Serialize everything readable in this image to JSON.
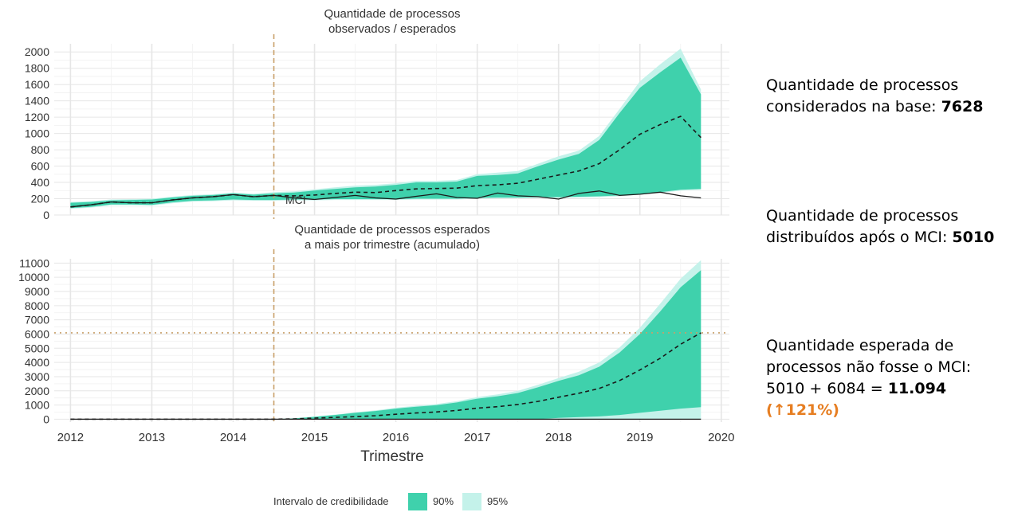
{
  "chart_data": [
    {
      "type": "area",
      "title_line1": "Quantidade de processos",
      "title_line2": "observados / esperados",
      "xlabel": "",
      "ylabel": "",
      "xlim": [
        2011.8,
        2020.1
      ],
      "ylim": [
        0,
        2100
      ],
      "yticks": [
        0,
        200,
        400,
        600,
        800,
        1000,
        1200,
        1400,
        1600,
        1800,
        2000
      ],
      "xticks": [
        2012,
        2013,
        2014,
        2015,
        2016,
        2017,
        2018,
        2019,
        2020
      ],
      "grid": true,
      "intervention": {
        "x": 2014.5,
        "label": "MCI"
      },
      "x": [
        2012.0,
        2012.25,
        2012.5,
        2012.75,
        2013.0,
        2013.25,
        2013.5,
        2013.75,
        2014.0,
        2014.25,
        2014.5,
        2014.75,
        2015.0,
        2015.25,
        2015.5,
        2015.75,
        2016.0,
        2016.25,
        2016.5,
        2016.75,
        2017.0,
        2017.25,
        2017.5,
        2017.75,
        2018.0,
        2018.25,
        2018.5,
        2018.75,
        2019.0,
        2019.25,
        2019.5,
        2019.75
      ],
      "series": [
        {
          "name": "observado",
          "style": "solid",
          "values": [
            100,
            125,
            160,
            150,
            150,
            185,
            210,
            225,
            250,
            225,
            240,
            210,
            190,
            215,
            240,
            210,
            195,
            230,
            260,
            215,
            205,
            270,
            235,
            225,
            195,
            265,
            295,
            240,
            255,
            280,
            235,
            210
          ]
        },
        {
          "name": "esperado",
          "style": "dashed",
          "values": [
            100,
            125,
            160,
            150,
            150,
            185,
            210,
            225,
            250,
            225,
            240,
            235,
            245,
            265,
            280,
            275,
            300,
            320,
            325,
            330,
            360,
            370,
            390,
            440,
            490,
            540,
            630,
            800,
            990,
            1110,
            1210,
            950
          ]
        },
        {
          "name": "90%",
          "role": "band",
          "lower": [
            85,
            100,
            130,
            130,
            125,
            155,
            175,
            180,
            190,
            185,
            185,
            190,
            190,
            195,
            195,
            195,
            195,
            200,
            200,
            200,
            210,
            215,
            215,
            220,
            220,
            225,
            230,
            240,
            260,
            280,
            310,
            320
          ],
          "upper": [
            150,
            160,
            180,
            185,
            190,
            215,
            235,
            245,
            265,
            250,
            265,
            275,
            300,
            320,
            340,
            350,
            370,
            400,
            400,
            410,
            480,
            490,
            510,
            600,
            680,
            750,
            920,
            1250,
            1560,
            1750,
            1930,
            1480
          ]
        },
        {
          "name": "95%",
          "role": "band",
          "lower": [
            75,
            90,
            120,
            120,
            115,
            145,
            165,
            170,
            180,
            175,
            175,
            180,
            180,
            185,
            185,
            185,
            185,
            190,
            190,
            190,
            200,
            205,
            205,
            210,
            210,
            215,
            220,
            230,
            250,
            270,
            300,
            310
          ],
          "upper": [
            160,
            170,
            190,
            195,
            200,
            225,
            245,
            255,
            275,
            260,
            280,
            290,
            315,
            340,
            360,
            370,
            390,
            420,
            420,
            430,
            500,
            520,
            540,
            630,
            720,
            790,
            970,
            1300,
            1640,
            1850,
            2040,
            1540
          ]
        }
      ]
    },
    {
      "type": "area",
      "title_line1": "Quantidade de processos esperados",
      "title_line2": "a mais por trimestre (acumulado)",
      "xlabel": "Trimestre",
      "ylabel": "",
      "xlim": [
        2011.8,
        2020.1
      ],
      "ylim": [
        -200,
        11300
      ],
      "yticks": [
        0,
        1000,
        2000,
        3000,
        4000,
        5000,
        6000,
        7000,
        8000,
        9000,
        10000,
        11000
      ],
      "xticks": [
        2012,
        2013,
        2014,
        2015,
        2016,
        2017,
        2018,
        2019,
        2020
      ],
      "grid": true,
      "intervention": {
        "x": 2014.5
      },
      "reference_line": {
        "y": 6084
      },
      "x": [
        2012.0,
        2012.25,
        2012.5,
        2012.75,
        2013.0,
        2013.25,
        2013.5,
        2013.75,
        2014.0,
        2014.25,
        2014.5,
        2014.75,
        2015.0,
        2015.25,
        2015.5,
        2015.75,
        2016.0,
        2016.25,
        2016.5,
        2016.75,
        2017.0,
        2017.25,
        2017.5,
        2017.75,
        2018.0,
        2018.25,
        2018.5,
        2018.75,
        2019.0,
        2019.25,
        2019.5,
        2019.75
      ],
      "series": [
        {
          "name": "zero",
          "style": "solid",
          "values": [
            0,
            0,
            0,
            0,
            0,
            0,
            0,
            0,
            0,
            0,
            0,
            0,
            0,
            0,
            0,
            0,
            0,
            0,
            0,
            0,
            0,
            0,
            0,
            0,
            0,
            0,
            0,
            0,
            0,
            0,
            0,
            0
          ]
        },
        {
          "name": "acumulado",
          "style": "dashed",
          "values": [
            0,
            0,
            0,
            0,
            0,
            0,
            0,
            0,
            0,
            0,
            0,
            25,
            80,
            130,
            180,
            250,
            350,
            440,
            510,
            620,
            780,
            880,
            1040,
            1260,
            1550,
            1830,
            2170,
            2720,
            3470,
            4300,
            5280,
            6084
          ]
        },
        {
          "name": "90%",
          "role": "band",
          "lower": [
            0,
            0,
            0,
            0,
            0,
            0,
            0,
            0,
            0,
            0,
            0,
            0,
            0,
            0,
            0,
            0,
            0,
            0,
            0,
            0,
            0,
            0,
            0,
            0,
            100,
            150,
            200,
            300,
            450,
            600,
            750,
            850
          ],
          "upper": [
            0,
            0,
            0,
            0,
            0,
            0,
            0,
            0,
            0,
            0,
            0,
            60,
            170,
            300,
            450,
            580,
            750,
            880,
            990,
            1180,
            1450,
            1620,
            1850,
            2250,
            2700,
            3100,
            3700,
            4700,
            6000,
            7600,
            9300,
            10500
          ]
        },
        {
          "name": "95%",
          "role": "band",
          "lower": [
            0,
            0,
            0,
            0,
            0,
            0,
            0,
            0,
            0,
            0,
            0,
            0,
            0,
            0,
            0,
            0,
            0,
            0,
            0,
            0,
            0,
            0,
            0,
            0,
            0,
            0,
            0,
            0,
            0,
            0,
            0,
            0
          ],
          "upper": [
            0,
            0,
            0,
            0,
            0,
            0,
            0,
            0,
            0,
            0,
            0,
            70,
            190,
            330,
            490,
            630,
            810,
            950,
            1070,
            1270,
            1560,
            1750,
            2000,
            2430,
            2900,
            3350,
            4000,
            5050,
            6450,
            8150,
            9900,
            11200
          ]
        }
      ]
    }
  ],
  "legend": {
    "title": "Intervalo de credibilidade",
    "items": [
      {
        "label": "90%",
        "color": "#3fd1ac"
      },
      {
        "label": "95%",
        "color": "#c4f2ea"
      }
    ]
  },
  "colors": {
    "band90": "#3fd1ac",
    "band95": "#c4f2ea",
    "mci_line": "#c9a06a",
    "ref_line": "#c9a06a",
    "grid": "#e6e6e6"
  },
  "side": {
    "block1": {
      "line1": "Quantidade de processos",
      "line2_prefix": "considerados na base: ",
      "value": "7628"
    },
    "block2": {
      "line1": "Quantidade de processos",
      "line2_prefix": "distribuídos após o MCI: ",
      "value": "5010"
    },
    "block3": {
      "line1": "Quantidade esperada de",
      "line2": "processos não fosse o MCI:",
      "line3_prefix": "5010 + 6084 = ",
      "value": "11.094",
      "pct": "(↑121%)"
    }
  }
}
